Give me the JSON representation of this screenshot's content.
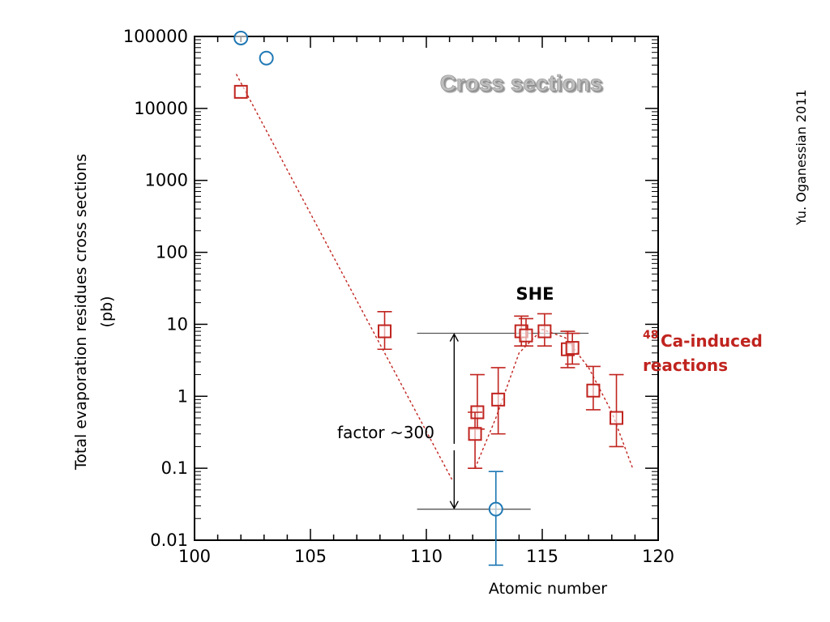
{
  "chart_data": {
    "type": "scatter",
    "title": "Cross sections",
    "xlabel": "Atomic number",
    "ylabel": "Total evaporation residues cross sections",
    "ylabel_unit": "(pb)",
    "xlim": [
      100,
      120
    ],
    "ylim": [
      0.01,
      100000
    ],
    "yscale": "log",
    "x_ticks": [
      "100",
      "105",
      "110",
      "115",
      "120"
    ],
    "y_ticks": [
      "100000",
      "10000",
      "1000",
      "100",
      "10",
      "1",
      "0.1",
      "0.01"
    ],
    "credit": "Yu. Oganessian 2011",
    "annotations": {
      "she": "SHE",
      "factor": "factor ~300",
      "ca_mass": "48",
      "ca_line1": "Ca-induced",
      "ca_line2": "reactions"
    },
    "colors": {
      "ca": "#c0241f",
      "blue": "#1f78b4",
      "axis": "#000000"
    },
    "series": [
      {
        "marker": "square",
        "color": "#c0241f",
        "points": [
          {
            "x": 102,
            "y": 17000
          },
          {
            "x": 108.2,
            "y": 8,
            "ylo": 4.5,
            "yhi": 15
          },
          {
            "x": 112.2,
            "y": 0.6,
            "ylo": 0.35,
            "yhi": 2
          },
          {
            "x": 112.1,
            "y": 0.3,
            "ylo": 0.1,
            "yhi": 0.6
          },
          {
            "x": 113.1,
            "y": 0.9,
            "ylo": 0.3,
            "yhi": 2.5
          },
          {
            "x": 114.1,
            "y": 8,
            "ylo": 5,
            "yhi": 13
          },
          {
            "x": 114.3,
            "y": 7,
            "ylo": 5,
            "yhi": 12
          },
          {
            "x": 115.1,
            "y": 8,
            "ylo": 5,
            "yhi": 14
          },
          {
            "x": 116.1,
            "y": 4.5,
            "ylo": 2.5,
            "yhi": 8
          },
          {
            "x": 116.3,
            "y": 4.7,
            "ylo": 2.8,
            "yhi": 7.5
          },
          {
            "x": 117.2,
            "y": 1.2,
            "ylo": 0.65,
            "yhi": 2.6
          },
          {
            "x": 118.2,
            "y": 0.5,
            "ylo": 0.2,
            "yhi": 2
          }
        ]
      },
      {
        "marker": "circle",
        "color": "#1f78b4",
        "points": [
          {
            "x": 102,
            "y": 95000
          },
          {
            "x": 103.1,
            "y": 50000
          },
          {
            "x": 113,
            "y": 0.027,
            "ylo": 0.0045,
            "yhi": 0.09
          }
        ]
      },
      {
        "marker": "dashed-line",
        "color": "#c0241f",
        "points": [
          {
            "x": 101.8,
            "y": 30000
          },
          {
            "x": 111.1,
            "y": 0.07
          }
        ]
      },
      {
        "marker": "dashed-line",
        "color": "#c0241f",
        "points": [
          {
            "x": 112.1,
            "y": 0.1
          },
          {
            "x": 113,
            "y": 0.5
          },
          {
            "x": 114,
            "y": 4
          },
          {
            "x": 115,
            "y": 8.5
          },
          {
            "x": 116,
            "y": 6.5
          },
          {
            "x": 117,
            "y": 2.5
          },
          {
            "x": 118,
            "y": 0.6
          },
          {
            "x": 118.9,
            "y": 0.1
          }
        ]
      }
    ],
    "reference_lines": [
      {
        "y": 7.5,
        "x_from": 109.6,
        "x_to": 117
      },
      {
        "y": 0.027,
        "x_from": 109.6,
        "x_to": 114.5
      }
    ],
    "factor_arrow": {
      "x": 111.2,
      "y_top": 7.5,
      "y_bottom": 0.027
    }
  }
}
